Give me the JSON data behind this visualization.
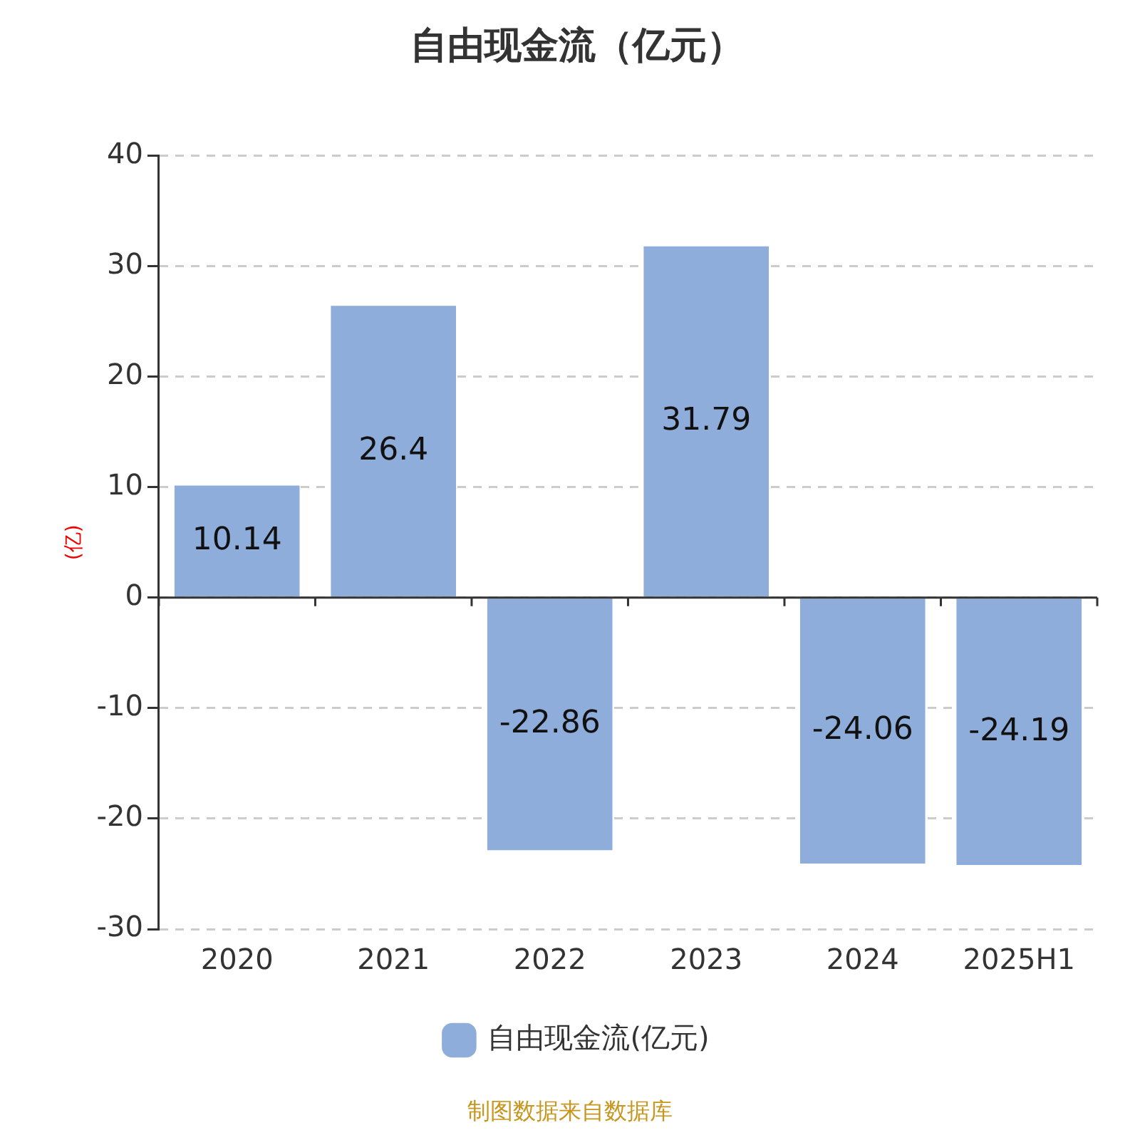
{
  "chart_data": {
    "type": "bar",
    "title": "自由现金流（亿元）",
    "ylabel": "(亿)",
    "categories": [
      "2020",
      "2021",
      "2022",
      "2023",
      "2024",
      "2025H1"
    ],
    "series": [
      {
        "name": "自由现金流(亿元)",
        "color": "#8eaddb",
        "values": [
          10.14,
          26.4,
          -22.86,
          31.79,
          -24.06,
          -24.19
        ]
      }
    ],
    "ylim": [
      -30,
      40
    ],
    "yticks": [
      -30,
      -20,
      -10,
      0,
      10,
      20,
      30,
      40
    ],
    "grid": "y",
    "legend": "bottom",
    "data_labels": true,
    "annotations": [
      "制图数据来自数据库"
    ]
  }
}
